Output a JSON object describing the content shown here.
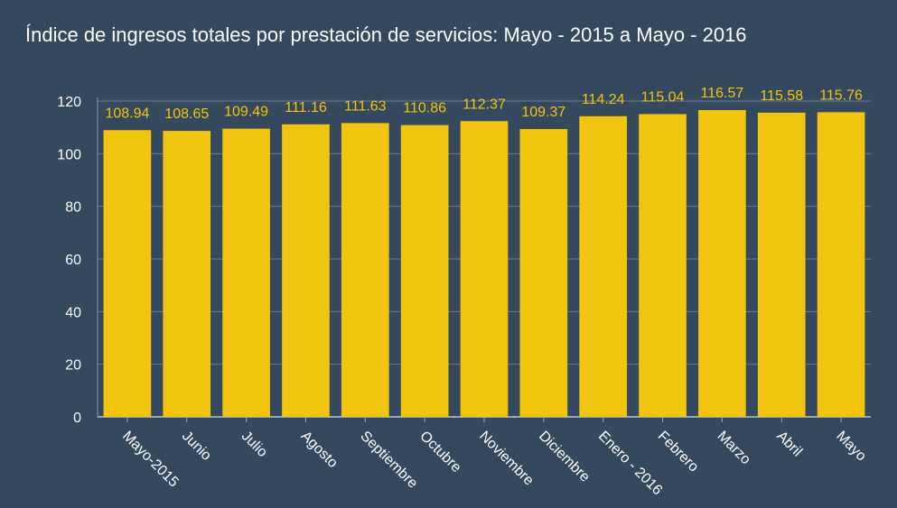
{
  "colors": {
    "background": "#34495e",
    "bar": "#f1c40f",
    "grid": "#6b7b8c",
    "text": "#ffffff",
    "data_label": "#f1c40f"
  },
  "chart_data": {
    "type": "bar",
    "title": "Índice de ingresos totales por prestación de servicios: Mayo - 2015 a Mayo - 2016",
    "xlabel": "",
    "ylabel": "",
    "ylim": [
      0,
      120
    ],
    "yticks": [
      0,
      20,
      40,
      60,
      80,
      100,
      120
    ],
    "grid": true,
    "legend": "none",
    "categories": [
      "Mayo-2015",
      "Junio",
      "Julio",
      "Agosto",
      "Septiembre",
      "Octubre",
      "Noviembre",
      "Diciembre",
      "Enero - 2016",
      "Febrero",
      "Marzo",
      "Abril",
      "Mayo"
    ],
    "values": [
      108.94,
      108.65,
      109.49,
      111.16,
      111.63,
      110.86,
      112.37,
      109.37,
      114.24,
      115.04,
      116.57,
      115.58,
      115.76
    ]
  }
}
